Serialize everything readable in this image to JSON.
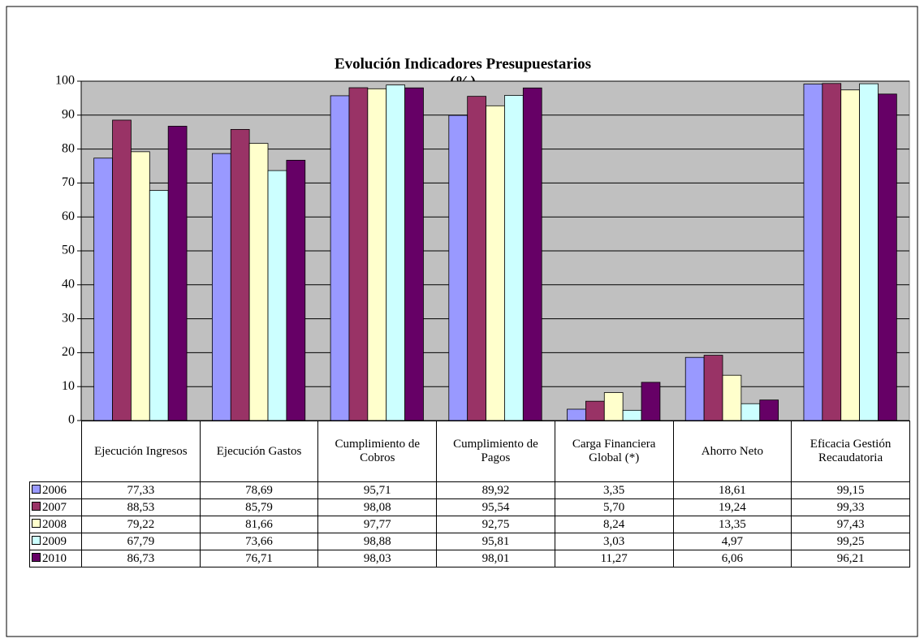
{
  "chart_data": {
    "type": "bar",
    "title": "Evolución Indicadores Presupuestarios",
    "subtitle": "(%)",
    "categories": [
      "Ejecución Ingresos",
      "Ejecución Gastos",
      "Cumplimiento de Cobros",
      "Cumplimiento de Pagos",
      "Carga Financiera Global (*)",
      "Ahorro Neto",
      "Eficacia Gestión Recaudatoria"
    ],
    "series": [
      {
        "name": "2006",
        "color": "#9999ff",
        "values": [
          77.33,
          78.69,
          95.71,
          89.92,
          3.35,
          18.61,
          99.15
        ],
        "value_labels": [
          "77,33",
          "78,69",
          "95,71",
          "89,92",
          "3,35",
          "18,61",
          "99,15"
        ]
      },
      {
        "name": "2007",
        "color": "#993366",
        "values": [
          88.53,
          85.79,
          98.08,
          95.54,
          5.7,
          19.24,
          99.33
        ],
        "value_labels": [
          "88,53",
          "85,79",
          "98,08",
          "95,54",
          "5,70",
          "19,24",
          "99,33"
        ]
      },
      {
        "name": "2008",
        "color": "#ffffcc",
        "values": [
          79.22,
          81.66,
          97.77,
          92.75,
          8.24,
          13.35,
          97.43
        ],
        "value_labels": [
          "79,22",
          "81,66",
          "97,77",
          "92,75",
          "8,24",
          "13,35",
          "97,43"
        ]
      },
      {
        "name": "2009",
        "color": "#ccffff",
        "values": [
          67.79,
          73.66,
          98.88,
          95.81,
          3.03,
          4.97,
          99.25
        ],
        "value_labels": [
          "67,79",
          "73,66",
          "98,88",
          "95,81",
          "3,03",
          "4,97",
          "99,25"
        ]
      },
      {
        "name": "2010",
        "color": "#660066",
        "values": [
          86.73,
          76.71,
          98.03,
          98.01,
          11.27,
          6.06,
          96.21
        ],
        "value_labels": [
          "86,73",
          "76,71",
          "98,03",
          "98,01",
          "11,27",
          "6,06",
          "96,21"
        ]
      }
    ],
    "ylim": [
      0,
      100
    ],
    "yticks": [
      0,
      10,
      20,
      30,
      40,
      50,
      60,
      70,
      80,
      90,
      100
    ],
    "grid": true,
    "plot_background": "#c0c0c0"
  }
}
